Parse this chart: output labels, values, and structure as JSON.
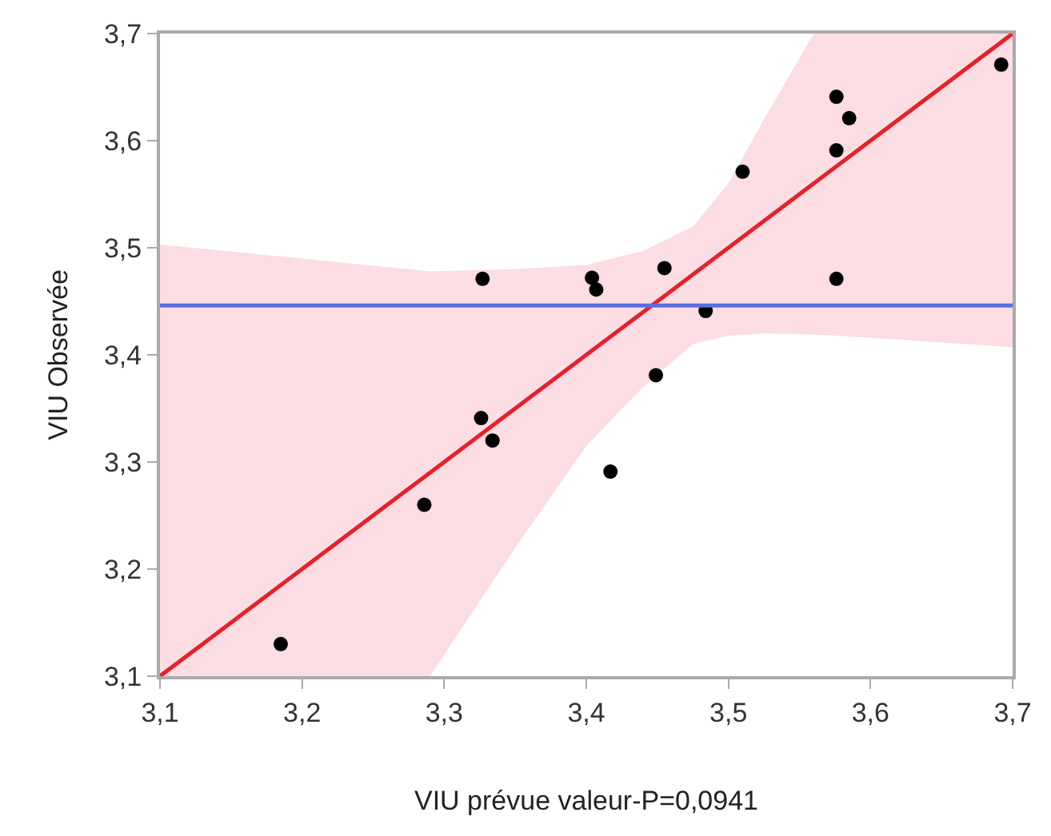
{
  "chart_data": {
    "type": "scatter",
    "xlabel": "VIU prévue valeur-P=0,0941",
    "ylabel": "VIU Observée",
    "xlim": [
      3.1,
      3.7
    ],
    "ylim": [
      3.1,
      3.7
    ],
    "xticks": [
      {
        "value": 3.1,
        "label": "3,1"
      },
      {
        "value": 3.2,
        "label": "3,2"
      },
      {
        "value": 3.3,
        "label": "3,3"
      },
      {
        "value": 3.4,
        "label": "3,4"
      },
      {
        "value": 3.5,
        "label": "3,5"
      },
      {
        "value": 3.6,
        "label": "3,6"
      },
      {
        "value": 3.7,
        "label": "3,7"
      }
    ],
    "yticks": [
      {
        "value": 3.1,
        "label": "3,1"
      },
      {
        "value": 3.2,
        "label": "3,2"
      },
      {
        "value": 3.3,
        "label": "3,3"
      },
      {
        "value": 3.4,
        "label": "3,4"
      },
      {
        "value": 3.5,
        "label": "3,5"
      },
      {
        "value": 3.6,
        "label": "3,6"
      },
      {
        "value": 3.7,
        "label": "3,7"
      }
    ],
    "grid": false,
    "ref_lines": [
      {
        "axis": "y",
        "value": 3.446,
        "color": "#5b6ee0"
      }
    ],
    "series": [
      {
        "type": "line",
        "color": "#e8202a",
        "x": [
          3.1,
          3.2,
          3.29,
          3.35,
          3.4,
          3.44,
          3.475,
          3.5,
          3.525,
          3.56,
          3.6,
          3.7
        ],
        "values": [
          3.1,
          3.2,
          3.29,
          3.35,
          3.4,
          3.44,
          3.475,
          3.5,
          3.525,
          3.56,
          3.6,
          3.7
        ],
        "lower": [
          3.1,
          3.1,
          3.1,
          3.22,
          3.315,
          3.37,
          3.41,
          3.418,
          3.42,
          3.419,
          3.416,
          3.407
        ],
        "upper": [
          3.503,
          3.49,
          3.478,
          3.48,
          3.484,
          3.497,
          3.52,
          3.56,
          3.62,
          3.7,
          3.7,
          3.7
        ],
        "marker": "none"
      },
      {
        "type": "scatter",
        "color": "#000000",
        "marker": "circle",
        "x": [
          3.185,
          3.286,
          3.327,
          3.326,
          3.334,
          3.404,
          3.407,
          3.455,
          3.449,
          3.417,
          3.484,
          3.51,
          3.576,
          3.585,
          3.576,
          3.576,
          3.692
        ],
        "values": [
          3.13,
          3.26,
          3.471,
          3.341,
          3.32,
          3.472,
          3.461,
          3.481,
          3.381,
          3.291,
          3.441,
          3.571,
          3.641,
          3.621,
          3.591,
          3.471,
          3.671
        ]
      }
    ]
  }
}
